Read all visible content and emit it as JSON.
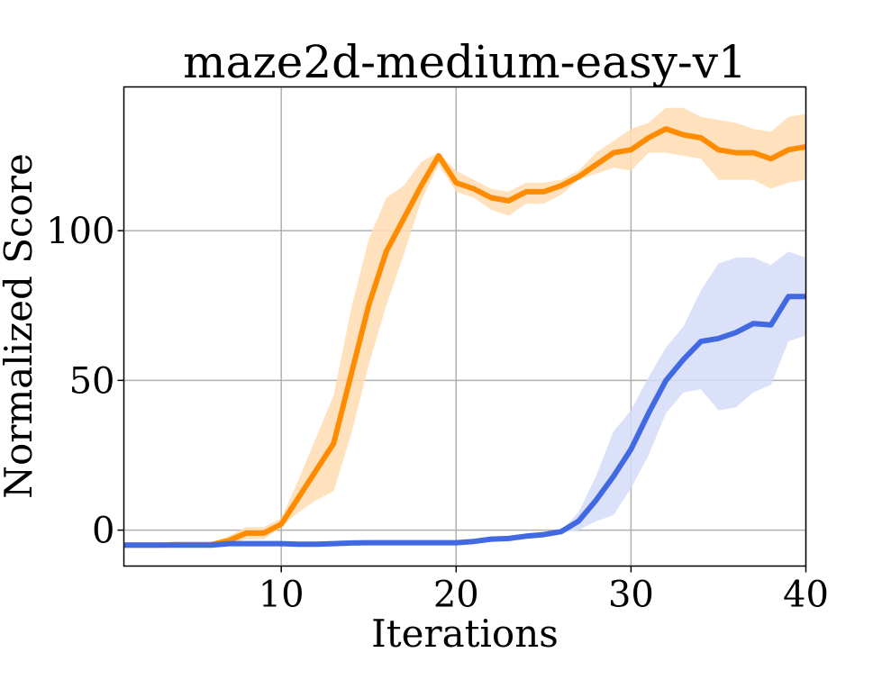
{
  "chart_data": {
    "type": "line",
    "title": "maze2d-medium-easy-v1",
    "xlabel": "Iterations",
    "ylabel": "Normalized Score",
    "xlim": [
      1,
      40
    ],
    "ylim": [
      -12,
      148
    ],
    "xticks": [
      10,
      20,
      30,
      40
    ],
    "yticks": [
      0,
      50,
      100
    ],
    "grid": true,
    "series": [
      {
        "color": "#ff8c00",
        "band_color": "#ffdcb3",
        "x": [
          1,
          2,
          3,
          4,
          5,
          6,
          7,
          8,
          9,
          10,
          11,
          12,
          13,
          14,
          15,
          16,
          17,
          18,
          19,
          20,
          21,
          22,
          23,
          24,
          25,
          26,
          27,
          28,
          29,
          30,
          31,
          32,
          33,
          34,
          35,
          36,
          37,
          38,
          39,
          40
        ],
        "y": [
          -5,
          -5,
          -5,
          -4.8,
          -4.8,
          -4.8,
          -3.5,
          -1,
          -1,
          2,
          11,
          20,
          29,
          52,
          75,
          93,
          104,
          115,
          125,
          116,
          114,
          111,
          110,
          113,
          113,
          115,
          118,
          122,
          126,
          127,
          131,
          134,
          132,
          131,
          127,
          126,
          126,
          124,
          127,
          128
        ],
        "lower": [
          -5,
          -5,
          -5,
          -5,
          -5,
          -5,
          -5,
          -3,
          -3,
          1,
          6,
          10,
          13,
          32,
          55,
          75,
          92,
          110,
          122,
          113,
          111,
          107,
          105,
          109,
          109,
          112,
          117,
          119,
          121,
          120,
          126,
          126,
          125,
          124,
          117,
          117,
          117,
          114,
          116,
          117
        ],
        "upper": [
          -5,
          -5,
          -5,
          -4.5,
          -4.5,
          -4.5,
          -2,
          1,
          1,
          4,
          17,
          31,
          45,
          74,
          97,
          111,
          115,
          123,
          126,
          120,
          117,
          114,
          113,
          116,
          116,
          117,
          120,
          126,
          130,
          134,
          136,
          141,
          141,
          138,
          137,
          136,
          134,
          133,
          138,
          139
        ]
      },
      {
        "color": "#4169e1",
        "band_color": "#d3dcf7",
        "x": [
          1,
          2,
          3,
          4,
          5,
          6,
          7,
          8,
          9,
          10,
          11,
          12,
          13,
          14,
          15,
          16,
          17,
          18,
          19,
          20,
          21,
          22,
          23,
          24,
          25,
          26,
          27,
          28,
          29,
          30,
          31,
          32,
          33,
          34,
          35,
          36,
          37,
          38,
          39,
          40
        ],
        "y": [
          -5,
          -5,
          -5,
          -5,
          -5,
          -5,
          -4.5,
          -4.5,
          -4.5,
          -4.5,
          -4.7,
          -4.7,
          -4.5,
          -4.3,
          -4.2,
          -4.2,
          -4.2,
          -4.2,
          -4.2,
          -4.2,
          -3.8,
          -3,
          -2.8,
          -2,
          -1.5,
          -0.5,
          3,
          10,
          18,
          27,
          39,
          50,
          57,
          63,
          64,
          66,
          69,
          68.5,
          78,
          78
        ],
        "lower": [
          -5,
          -5,
          -5,
          -5,
          -5,
          -5,
          -4.7,
          -4.7,
          -4.7,
          -4.7,
          -4.9,
          -4.9,
          -4.7,
          -4.5,
          -4.4,
          -4.4,
          -4.4,
          -4.4,
          -4.4,
          -4.4,
          -4,
          -3.3,
          -3,
          -2.3,
          -1.8,
          -0.8,
          0,
          3,
          5,
          14,
          25,
          39,
          46,
          47,
          40,
          41,
          46,
          48.5,
          63,
          65
        ],
        "upper": [
          -5,
          -5,
          -5,
          -5,
          -5,
          -5,
          -4.3,
          -4.3,
          -4.3,
          -4.3,
          -4.5,
          -4.5,
          -4.3,
          -4.1,
          -4,
          -4,
          -4,
          -4,
          -4,
          -4,
          -3.6,
          -2.7,
          -2.6,
          -1.7,
          -1.2,
          -0.2,
          6,
          18,
          33,
          40,
          51,
          61,
          68,
          80,
          89,
          91,
          91,
          88.5,
          93,
          91
        ]
      }
    ]
  }
}
